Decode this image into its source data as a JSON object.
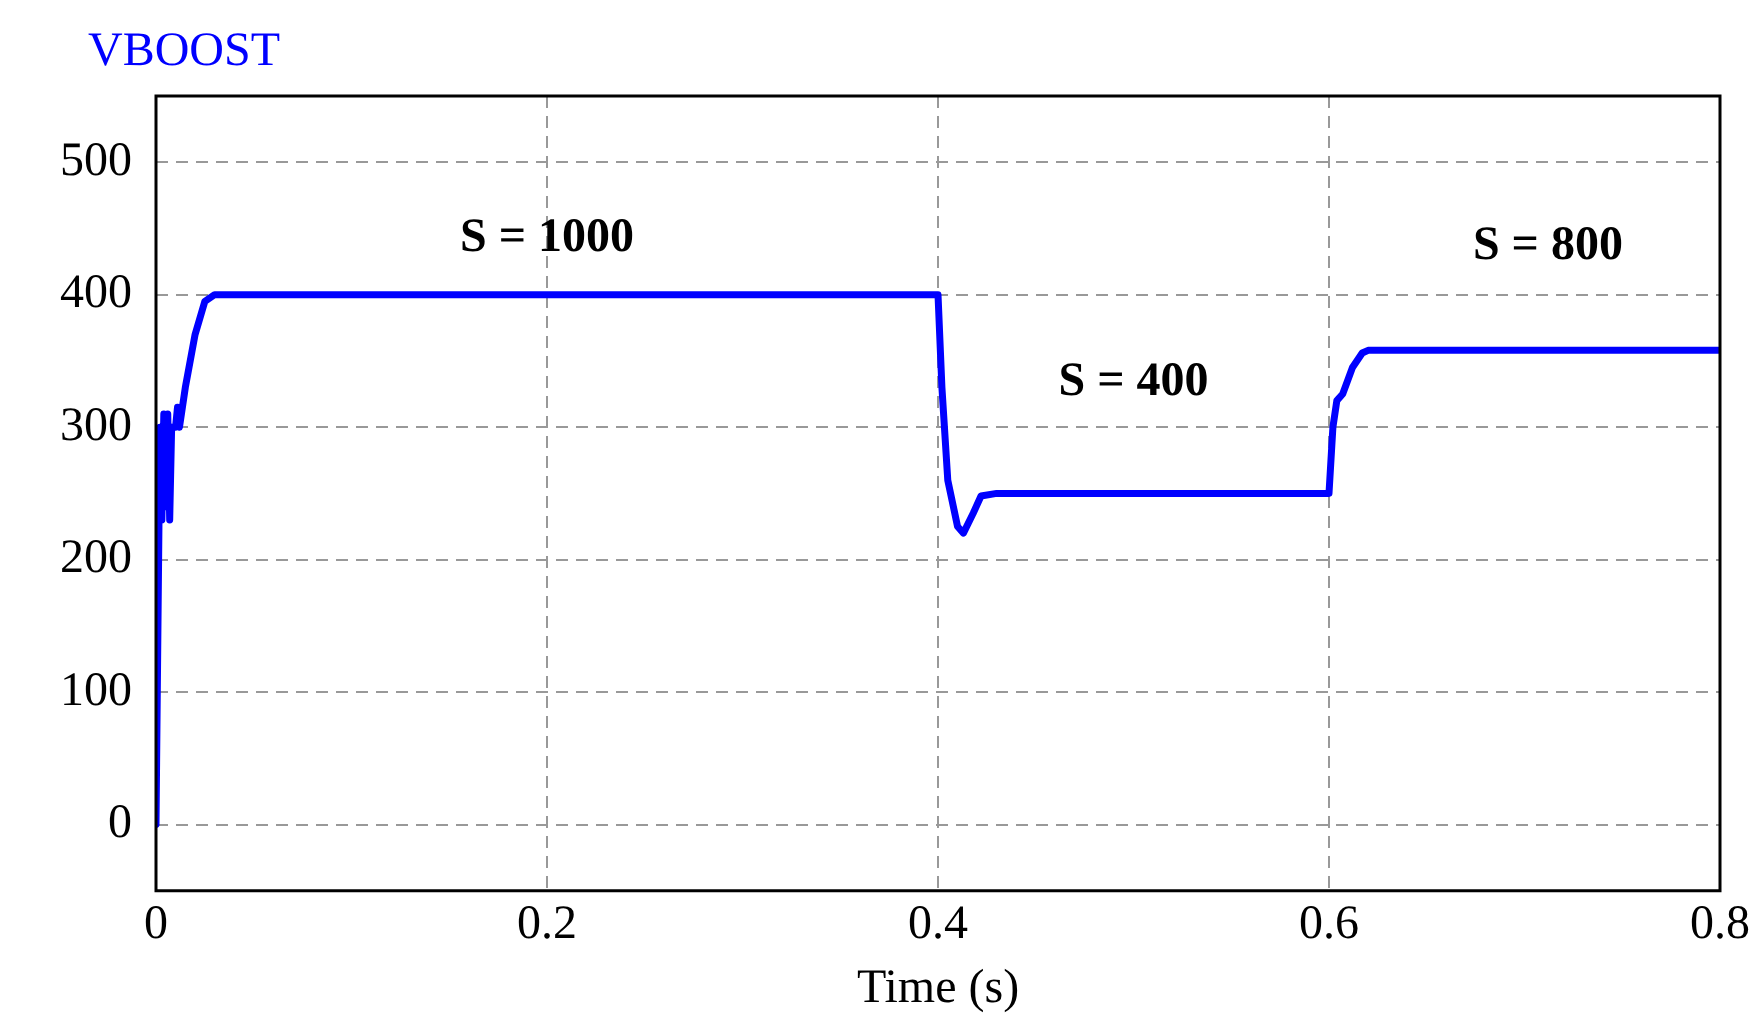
{
  "chart_data": {
    "type": "line",
    "xlabel": "Time (s)",
    "xlim": [
      0,
      0.8
    ],
    "xticks": [
      0,
      0.2,
      0.4,
      0.6,
      0.8
    ],
    "ylim": [
      -50,
      550
    ],
    "yticks": [
      0,
      100,
      200,
      300,
      400,
      500
    ],
    "grid": true,
    "legend": "top left",
    "marker": "none",
    "line_style": "solid",
    "series": [
      {
        "name": "VBOOST",
        "color": "#0000ff",
        "x": [
          0,
          0.002,
          0.003,
          0.004,
          0.005,
          0.006,
          0.007,
          0.008,
          0.01,
          0.011,
          0.012,
          0.015,
          0.02,
          0.025,
          0.03,
          0.4,
          0.402,
          0.405,
          0.41,
          0.413,
          0.418,
          0.422,
          0.43,
          0.6,
          0.602,
          0.604,
          0.607,
          0.612,
          0.617,
          0.62,
          0.8
        ],
        "values": [
          0,
          300,
          230,
          310,
          240,
          310,
          230,
          300,
          300,
          315,
          300,
          330,
          370,
          395,
          400,
          400,
          330,
          260,
          225,
          220,
          235,
          248,
          250,
          250,
          300,
          320,
          325,
          345,
          356,
          358,
          358
        ]
      }
    ],
    "annotations": [
      "S = 1000",
      "S = 400",
      "S = 800"
    ]
  }
}
